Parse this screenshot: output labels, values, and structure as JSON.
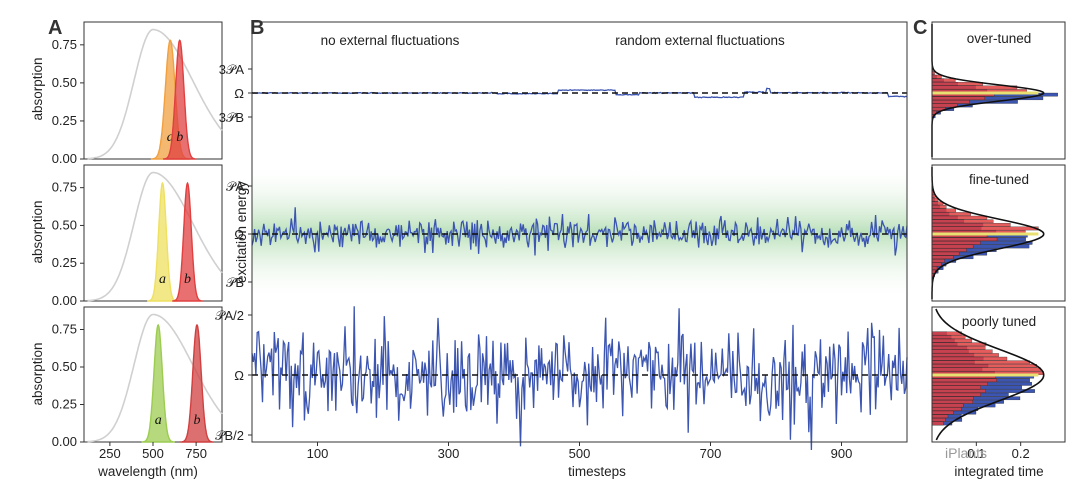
{
  "chart_data": [
    {
      "panel_label": "A",
      "type": "area",
      "xlabel": "wavelength (nm)",
      "ylabel": "absorption",
      "xlim": [
        100,
        900
      ],
      "ylim": [
        0,
        0.9
      ],
      "xticks": [
        "250",
        "500",
        "750"
      ],
      "yticks": [
        "0.00",
        "0.25",
        "0.50",
        "0.75"
      ],
      "spectrum": {
        "peak_nm": 500,
        "peak": 0.85,
        "color": "#d0d0d0"
      },
      "subplots": [
        {
          "series": [
            {
              "name": "a",
              "peak_nm": 600,
              "peak": 0.78,
              "width_nm": 28,
              "color": "#f0a040"
            },
            {
              "name": "b",
              "peak_nm": 655,
              "peak": 0.78,
              "width_nm": 24,
              "color": "#e04040"
            }
          ]
        },
        {
          "series": [
            {
              "name": "a",
              "peak_nm": 555,
              "peak": 0.78,
              "width_nm": 22,
              "color": "#eee060"
            },
            {
              "name": "b",
              "peak_nm": 700,
              "peak": 0.78,
              "width_nm": 22,
              "color": "#e04040"
            }
          ]
        },
        {
          "series": [
            {
              "name": "a",
              "peak_nm": 530,
              "peak": 0.78,
              "width_nm": 24,
              "color": "#9ccc50"
            },
            {
              "name": "b",
              "peak_nm": 755,
              "peak": 0.78,
              "width_nm": 24,
              "color": "#d04040"
            }
          ]
        }
      ]
    },
    {
      "panel_label": "B",
      "type": "line",
      "xlabel": "timesteps",
      "ylabel": "excitation energy",
      "xlim": [
        0,
        1000
      ],
      "xticks": [
        "100",
        "300",
        "500",
        "700",
        "900"
      ],
      "annotations": [
        "no external fluctuations",
        "random external fluctuations"
      ],
      "external_fluctuations_start": 345,
      "line_color": "#3b55b0",
      "subplots": [
        {
          "yticks": [
            "3𝒫A",
            "Ω",
            "3𝒫B"
          ],
          "noise_amplitude": 0.02,
          "external_amplitude": 0.3,
          "mean_level": "Ω",
          "band": false
        },
        {
          "yticks": [
            "𝒫A",
            "Ω",
            "𝒫B"
          ],
          "noise_amplitude": 0.35,
          "external_amplitude": 0.12,
          "mean_level": "Ω",
          "band": true
        },
        {
          "yticks": [
            "𝒫A/2",
            "Ω",
            "𝒫B/2"
          ],
          "noise_amplitude": 0.85,
          "external_amplitude": 0.12,
          "mean_level": "Ω",
          "band": false
        }
      ]
    },
    {
      "panel_label": "C",
      "type": "bar",
      "orientation": "horizontal",
      "xlabel": "integrated time",
      "xticks": [
        "0.1",
        "0.2"
      ],
      "subplots": [
        {
          "title": "over-tuned",
          "gaussian_sigma": 0.13
        },
        {
          "title": "fine-tuned",
          "gaussian_sigma": 0.24
        },
        {
          "title": "poorly tuned",
          "gaussian_sigma": 0.42
        }
      ]
    }
  ],
  "watermark": "iPlants"
}
